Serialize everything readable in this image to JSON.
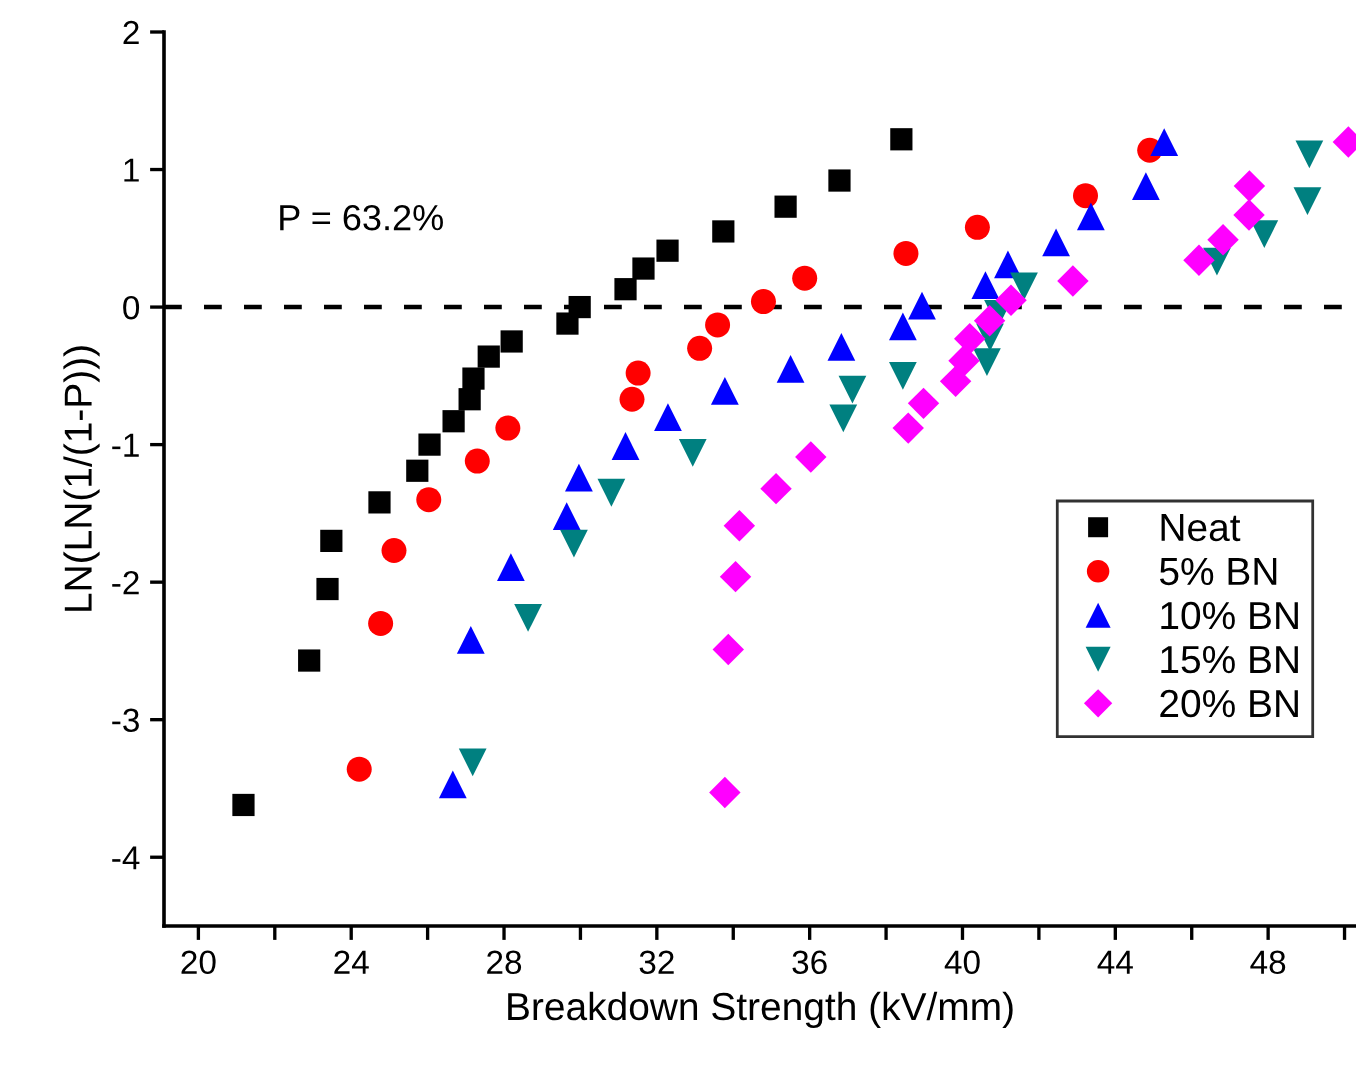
{
  "chart_data": {
    "type": "scatter",
    "xlabel": "Breakdown Strength (kV/mm)",
    "ylabel": "LN(LN(1/(1-P)))",
    "xlim": [
      19.1,
      50.3
    ],
    "ylim": [
      -4.5,
      2
    ],
    "xticks": [
      20,
      {
        "value": 22,
        "label": null
      },
      24,
      {
        "value": 26,
        "label": null
      },
      28,
      {
        "value": 30,
        "label": null
      },
      32,
      {
        "value": 34,
        "label": null
      },
      36,
      {
        "value": 38,
        "label": null
      },
      40,
      {
        "value": 42,
        "label": null
      },
      44,
      {
        "value": 46,
        "label": null
      },
      48,
      {
        "value": 50,
        "label": null
      }
    ],
    "yticks": [
      -4,
      -3,
      -2,
      -1,
      0,
      1,
      2
    ],
    "grid": false,
    "legend": "lower right",
    "ref_lines": [
      {
        "axis": "y",
        "value": 0,
        "line_style": "dashed",
        "color": "#000000"
      }
    ],
    "annotations": [
      "P = 63.2%"
    ],
    "series": [
      {
        "name": "Neat",
        "color": "#000000",
        "marker": "square",
        "x": [
          21.18,
          22.9,
          23.38,
          23.48,
          24.74,
          25.73,
          26.05,
          26.68,
          27.1,
          27.2,
          27.6,
          28.2,
          29.66,
          29.98,
          31.18,
          31.65,
          32.28,
          33.74,
          35.37,
          36.78,
          38.4
        ],
        "values": [
          -3.62,
          -2.57,
          -2.05,
          -1.7,
          -1.42,
          -1.19,
          -1.0,
          -0.83,
          -0.67,
          -0.52,
          -0.36,
          -0.25,
          -0.12,
          0.0,
          0.13,
          0.28,
          0.41,
          0.55,
          0.73,
          0.92,
          1.22
        ]
      },
      {
        "name": "5% BN",
        "color": "#ff0000",
        "marker": "circle",
        "x": [
          24.21,
          24.77,
          25.12,
          26.03,
          27.3,
          28.1,
          31.35,
          31.51,
          33.12,
          33.59,
          34.79,
          35.87,
          38.52,
          40.39,
          43.22,
          44.9
        ],
        "values": [
          -3.36,
          -2.3,
          -1.77,
          -1.4,
          -1.12,
          -0.88,
          -0.67,
          -0.48,
          -0.3,
          -0.13,
          0.04,
          0.21,
          0.39,
          0.58,
          0.81,
          1.14
        ]
      },
      {
        "name": "10% BN",
        "color": "#0000ff",
        "marker": "triangle",
        "x": [
          26.66,
          27.13,
          28.18,
          29.64,
          29.96,
          31.18,
          32.29,
          33.78,
          35.5,
          36.83,
          38.44,
          38.94,
          40.6,
          41.19,
          42.45,
          43.36,
          44.8,
          45.28
        ],
        "values": [
          -3.47,
          -2.42,
          -1.89,
          -1.52,
          -1.24,
          -1.01,
          -0.8,
          -0.61,
          -0.45,
          -0.29,
          -0.14,
          0.01,
          0.16,
          0.31,
          0.47,
          0.66,
          0.88,
          1.2
        ]
      },
      {
        "name": "15% BN",
        "color": "#008080",
        "marker": "triangle_down",
        "x": [
          27.18,
          28.63,
          29.83,
          30.81,
          32.94,
          36.88,
          37.12,
          38.44,
          40.64,
          40.72,
          40.93,
          41.61,
          46.66,
          47.9,
          49.03,
          49.08
        ],
        "values": [
          -3.31,
          -2.26,
          -1.72,
          -1.35,
          -1.06,
          -0.81,
          -0.6,
          -0.5,
          -0.4,
          -0.22,
          -0.05,
          0.15,
          0.33,
          0.53,
          0.77,
          1.11
        ]
      },
      {
        "name": "20% BN",
        "color": "#ff00ff",
        "marker": "diamond",
        "x": [
          33.78,
          33.87,
          34.06,
          34.16,
          35.12,
          36.03,
          38.58,
          38.98,
          39.82,
          40.04,
          40.19,
          40.71,
          41.27,
          42.89,
          46.19,
          46.82,
          47.5,
          47.51,
          50.1
        ],
        "values": [
          -3.53,
          -2.49,
          -1.96,
          -1.59,
          -1.32,
          -1.09,
          -0.88,
          -0.7,
          -0.54,
          -0.39,
          -0.23,
          -0.1,
          0.05,
          0.19,
          0.34,
          0.49,
          0.67,
          0.88,
          1.2
        ]
      }
    ]
  }
}
